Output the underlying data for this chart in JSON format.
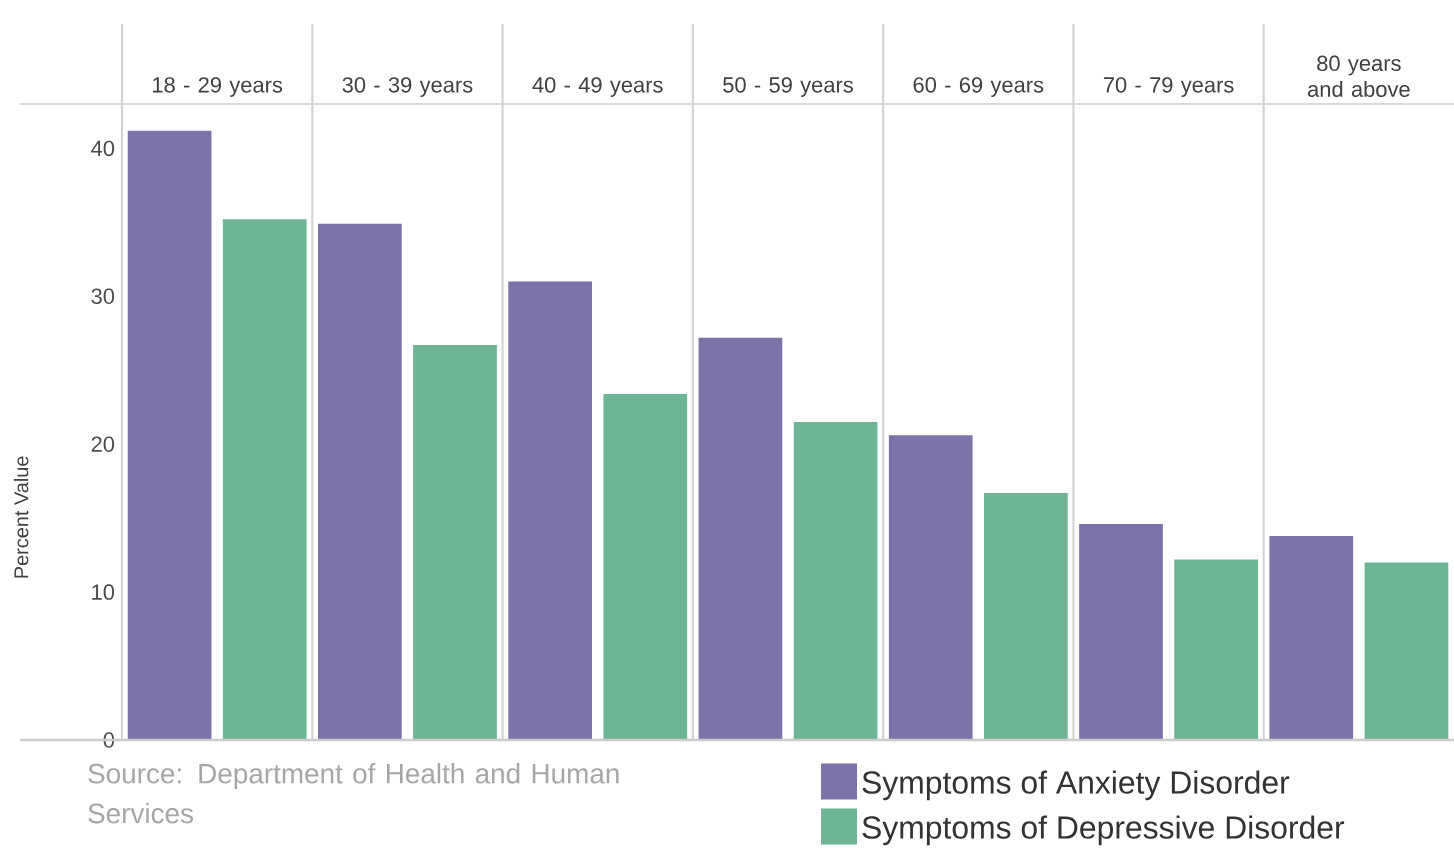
{
  "chart_data": {
    "type": "bar",
    "ylabel": "Percent Value",
    "categories": [
      "18 - 29 years",
      "30 - 39 years",
      "40 - 49 years",
      "50 - 59 years",
      "60 - 69 years",
      "70 - 79 years",
      "80 years and above"
    ],
    "series": [
      {
        "name": "Symptoms of Anxiety Disorder",
        "color": "#7e73a9",
        "values": [
          41.2,
          34.9,
          31.0,
          27.2,
          20.6,
          14.6,
          13.8
        ]
      },
      {
        "name": "Symptoms of Depressive Disorder",
        "color": "#6db595",
        "values": [
          35.2,
          26.7,
          23.4,
          21.5,
          16.7,
          12.2,
          12.0
        ]
      }
    ],
    "ylim": [
      0,
      43
    ],
    "yticks": [
      0,
      10,
      20,
      30,
      40
    ],
    "grid": false,
    "legend": "bottom right",
    "annotations": [
      "Source: Department of Health and Human Services"
    ]
  }
}
